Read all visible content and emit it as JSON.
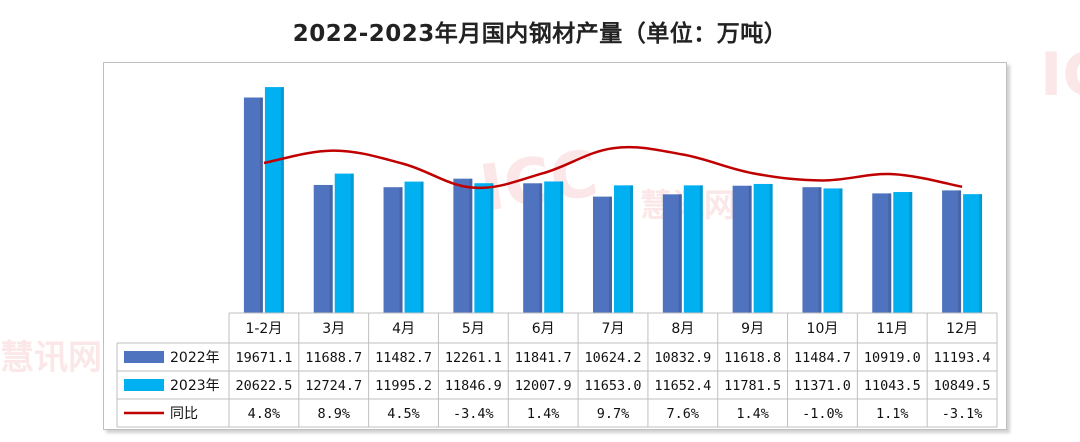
{
  "chart_data": {
    "type": "bar",
    "title": "2022-2023年月国内钢材产量（单位：万吨）",
    "categories": [
      "1-2月",
      "3月",
      "4月",
      "5月",
      "6月",
      "7月",
      "8月",
      "9月",
      "10月",
      "11月",
      "12月"
    ],
    "series": [
      {
        "name": "2022年",
        "color": "#4f73be",
        "values": [
          19671.1,
          11688.7,
          11482.7,
          12261.1,
          11841.7,
          10624.2,
          10832.9,
          11618.8,
          11484.7,
          10919.0,
          11193.4
        ],
        "labels": [
          "19671.1",
          "11688.7",
          "11482.7",
          "12261.1",
          "11841.7",
          "10624.2",
          "10832.9",
          "11618.8",
          "11484.7",
          "10919.0",
          "11193.4"
        ]
      },
      {
        "name": "2023年",
        "color": "#00b0f0",
        "values": [
          20622.5,
          12724.7,
          11995.2,
          11846.9,
          12007.9,
          11653.0,
          11652.4,
          11781.5,
          11371.0,
          11043.5,
          10849.5
        ],
        "labels": [
          "20622.5",
          "12724.7",
          "11995.2",
          "11846.9",
          "12007.9",
          "11653.0",
          "11652.4",
          "11781.5",
          "11371.0",
          "11043.5",
          "10849.5"
        ]
      },
      {
        "name": "同比",
        "color": "#c00000",
        "type": "line",
        "values": [
          4.8,
          8.9,
          4.5,
          -3.4,
          1.4,
          9.7,
          7.6,
          1.4,
          -1.0,
          1.1,
          -3.1
        ],
        "labels": [
          "4.8%",
          "8.9%",
          "4.5%",
          "-3.4%",
          "1.4%",
          "9.7%",
          "7.6%",
          "1.4%",
          "-1.0%",
          "1.1%",
          "-3.1%"
        ]
      }
    ],
    "ylim": [
      0,
      22000
    ],
    "y2lim": [
      -45,
      35
    ]
  },
  "watermark": {
    "text": "慧讯网",
    "brand": "ICC"
  }
}
